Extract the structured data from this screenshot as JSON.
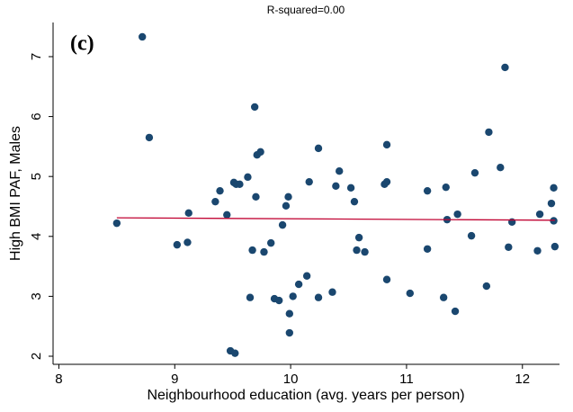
{
  "chart_data": {
    "type": "scatter",
    "title": "R-squared=0.00",
    "annotation": "(c)",
    "x_label": "Neighbourhood education (avg. years per person)",
    "y_label": "High BMI PAF, Males",
    "xlim": [
      7.95,
      12.32
    ],
    "ylim": [
      1.865,
      7.57
    ],
    "xticks": [
      8,
      9,
      10,
      11,
      12
    ],
    "yticks": [
      2,
      3,
      4,
      5,
      6,
      7
    ],
    "series": [
      {
        "type": "scatter",
        "color": "#1a476f",
        "x": [
          8.5,
          8.72,
          8.78,
          9.02,
          9.11,
          9.12,
          9.35,
          9.39,
          9.45,
          9.48,
          9.52,
          9.51,
          9.53,
          9.56,
          9.63,
          9.65,
          9.67,
          9.69,
          9.7,
          9.71,
          9.74,
          9.77,
          9.83,
          9.86,
          9.9,
          9.93,
          9.96,
          9.98,
          9.99,
          9.99,
          10.02,
          10.07,
          10.14,
          10.16,
          10.24,
          10.24,
          10.36,
          10.39,
          10.42,
          10.52,
          10.55,
          10.57,
          10.59,
          10.64,
          10.81,
          10.83,
          10.83,
          10.83,
          11.03,
          11.18,
          11.18,
          11.32,
          11.34,
          11.35,
          11.42,
          11.44,
          11.56,
          11.59,
          11.69,
          11.71,
          11.81,
          11.85,
          11.88,
          11.91,
          12.13,
          12.15,
          12.25,
          12.27,
          12.27,
          12.28
        ],
        "values": [
          4.22,
          7.33,
          5.65,
          3.86,
          3.9,
          4.39,
          4.58,
          4.76,
          4.36,
          2.09,
          2.05,
          4.9,
          4.87,
          4.87,
          4.99,
          2.98,
          3.77,
          6.16,
          4.66,
          5.36,
          5.41,
          3.74,
          3.89,
          2.96,
          2.93,
          4.19,
          4.51,
          4.66,
          2.71,
          2.39,
          3.0,
          3.2,
          3.34,
          4.91,
          2.98,
          5.47,
          3.07,
          4.84,
          5.09,
          4.81,
          4.58,
          3.77,
          3.98,
          3.74,
          4.87,
          4.91,
          5.53,
          3.28,
          3.05,
          3.79,
          4.76,
          2.98,
          4.82,
          4.28,
          2.75,
          4.37,
          4.01,
          5.06,
          3.17,
          5.74,
          5.15,
          6.82,
          3.82,
          4.24,
          3.76,
          4.37,
          4.55,
          4.81,
          4.26,
          3.83
        ]
      },
      {
        "type": "line",
        "color": "#c10534",
        "x": [
          8.5,
          12.28
        ],
        "values": [
          4.31,
          4.27
        ]
      }
    ]
  }
}
